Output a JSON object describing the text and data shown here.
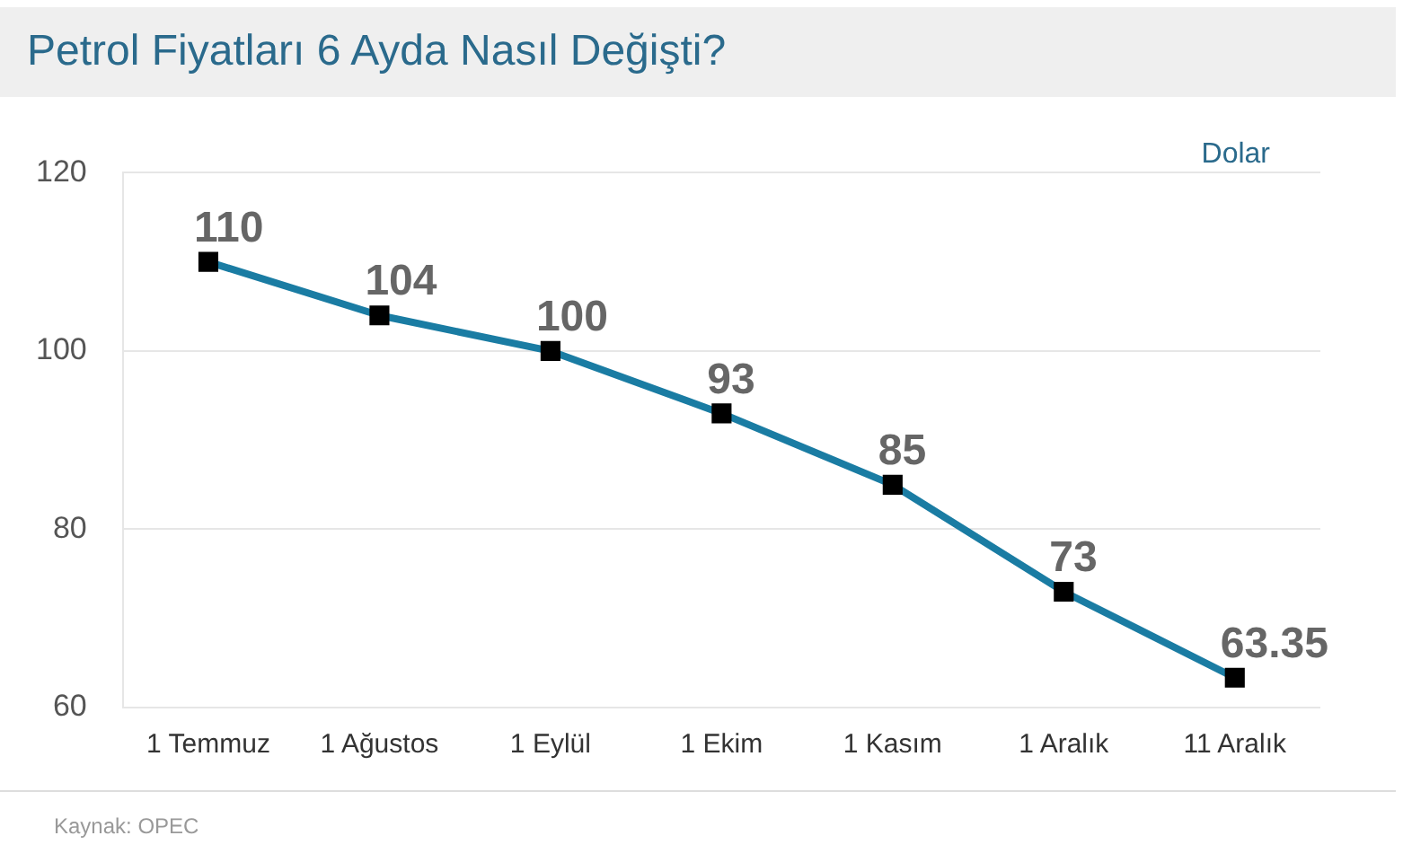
{
  "chart_data": {
    "type": "line",
    "title": "Petrol Fiyatları 6 Ayda Nasıl Değişti?",
    "ylabel": "Dolar",
    "categories": [
      "1 Temmuz",
      "1 Ağustos",
      "1 Eylül",
      "1 Ekim",
      "1 Kasım",
      "1 Aralık",
      "11 Aralık"
    ],
    "series": [
      {
        "color": "#1a7ca3",
        "values": [
          110,
          104,
          100,
          93,
          85,
          73,
          63.35
        ]
      }
    ],
    "ylim": [
      60,
      120
    ],
    "yticks": [
      60,
      80,
      100,
      120
    ],
    "grid": "y",
    "legend": false,
    "marker": "square",
    "line_style": "solid",
    "data_labels": true,
    "annotations": [
      "Kaynak: OPEC"
    ]
  }
}
